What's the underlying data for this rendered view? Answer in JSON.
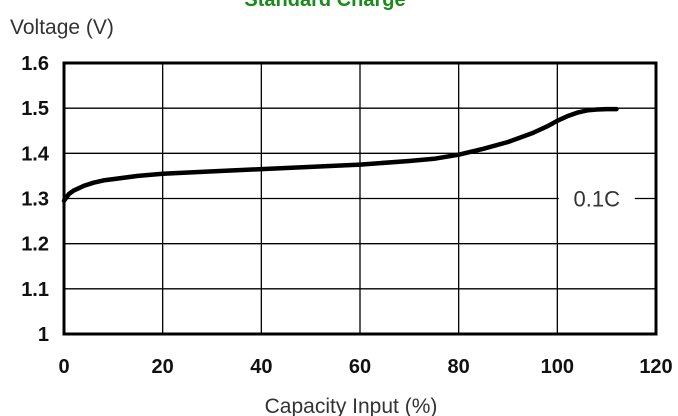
{
  "chart_data": {
    "type": "line",
    "title": "Standard Charge",
    "title_color": "#1a8a1a",
    "xlabel": "Capacity Input (%)",
    "ylabel": "Voltage (V)",
    "xlim": [
      0,
      120
    ],
    "ylim": [
      1,
      1.6
    ],
    "x_ticks": [
      "0",
      "20",
      "40",
      "60",
      "80",
      "100",
      "120"
    ],
    "y_ticks": [
      "1",
      "1.1",
      "1.2",
      "1.3",
      "1.4",
      "1.5",
      "1.6"
    ],
    "grid": true,
    "series": [
      {
        "name": "0.1C",
        "color": "#000000",
        "x": [
          0,
          1,
          2,
          4,
          6,
          8,
          10,
          15,
          20,
          30,
          40,
          50,
          60,
          70,
          75,
          80,
          85,
          90,
          95,
          98,
          100,
          102,
          104,
          106,
          108,
          110,
          112
        ],
        "y": [
          1.295,
          1.31,
          1.318,
          1.328,
          1.335,
          1.34,
          1.343,
          1.35,
          1.355,
          1.36,
          1.365,
          1.37,
          1.375,
          1.383,
          1.388,
          1.397,
          1.41,
          1.425,
          1.445,
          1.46,
          1.472,
          1.482,
          1.49,
          1.495,
          1.497,
          1.498,
          1.498
        ]
      }
    ],
    "annotations": [
      {
        "text": "0.1C",
        "x": 108,
        "y": 1.3
      }
    ]
  }
}
